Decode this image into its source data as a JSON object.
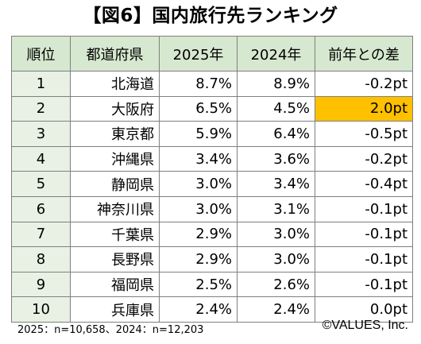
{
  "chart_data": {
    "type": "table",
    "title": "【図6】国内旅行先ランキング",
    "columns": [
      "順位",
      "都道府県",
      "2025年",
      "2024年",
      "前年との差"
    ],
    "rows": [
      {
        "rank": "1",
        "pref": "北海道",
        "y2025": "8.7%",
        "y2024": "8.9%",
        "diff": "-0.2pt"
      },
      {
        "rank": "2",
        "pref": "大阪府",
        "y2025": "6.5%",
        "y2024": "4.5%",
        "diff": "2.0pt"
      },
      {
        "rank": "3",
        "pref": "東京都",
        "y2025": "5.9%",
        "y2024": "6.4%",
        "diff": "-0.5pt"
      },
      {
        "rank": "4",
        "pref": "沖縄県",
        "y2025": "3.4%",
        "y2024": "3.6%",
        "diff": "-0.2pt"
      },
      {
        "rank": "5",
        "pref": "静岡県",
        "y2025": "3.0%",
        "y2024": "3.4%",
        "diff": "-0.4pt"
      },
      {
        "rank": "6",
        "pref": "神奈川県",
        "y2025": "3.0%",
        "y2024": "3.1%",
        "diff": "-0.1pt"
      },
      {
        "rank": "7",
        "pref": "千葉県",
        "y2025": "2.9%",
        "y2024": "3.0%",
        "diff": "-0.1pt"
      },
      {
        "rank": "8",
        "pref": "長野県",
        "y2025": "2.9%",
        "y2024": "3.0%",
        "diff": "-0.1pt"
      },
      {
        "rank": "9",
        "pref": "福岡県",
        "y2025": "2.5%",
        "y2024": "2.6%",
        "diff": "-0.1pt"
      },
      {
        "rank": "10",
        "pref": "兵庫県",
        "y2025": "2.4%",
        "y2024": "2.4%",
        "diff": "0.0pt"
      }
    ],
    "highlight_color": "#ffc000",
    "highlighted_row": "2"
  },
  "footnote": "2025：n=10,658、2024：n=12,203",
  "credit": "©VALUES, Inc.",
  "colors": {
    "header_bg": "#d6e8cf",
    "rank_col_bg": "#e8f1e4",
    "border": "#7f7f7f",
    "highlight": "#ffc000"
  }
}
